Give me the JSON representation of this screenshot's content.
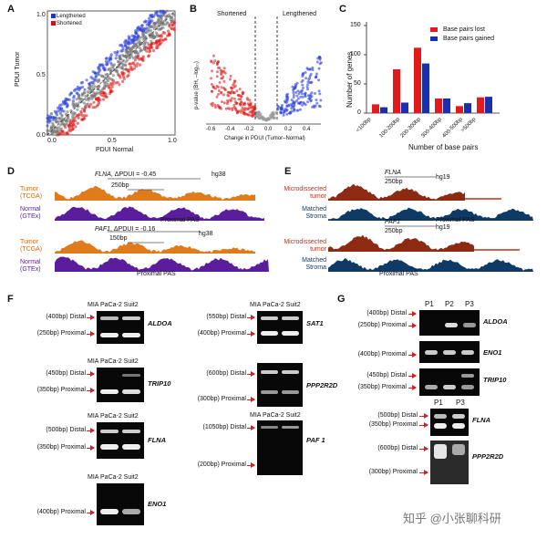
{
  "panelA": {
    "letter": "A",
    "xlabel": "PDUI Normal",
    "ylabel": "PDUI Tumor",
    "xticks": [
      "0.0",
      "0.5",
      "1.0"
    ],
    "yticks": [
      "0.0",
      "0.5",
      "1.0"
    ],
    "legend": [
      {
        "label": "Lengthened",
        "color": "#2233cc"
      },
      {
        "label": "Shortened",
        "color": "#cc1111"
      }
    ]
  },
  "panelB": {
    "letter": "B",
    "label_left": "Shortened",
    "label_right": "Lengthened",
    "xlabel": "Change in PDUI (Tumor–Normal)",
    "ylabel": "p-value (BH, –log₁₀)",
    "xticks": [
      "-0.6",
      "-0.4",
      "-0.2",
      "0.0",
      "0.2",
      "0.4"
    ]
  },
  "chart_data": {
    "type": "bar",
    "title": "",
    "xlabel": "Number of base pairs",
    "ylabel": "Number of genes",
    "ylim": [
      0,
      150
    ],
    "yticks": [
      "0",
      "50",
      "100",
      "150"
    ],
    "legend_position": "top-right",
    "categories": [
      "<100bp",
      "100-200bp",
      "200-300bp",
      "300-400bp",
      "400-500bp",
      ">500bp"
    ],
    "series": [
      {
        "name": "Base pairs lost",
        "color": "#e31a1c",
        "values": [
          15,
          75,
          112,
          25,
          12,
          27
        ]
      },
      {
        "name": "Base pairs gained",
        "color": "#1a2fb0",
        "values": [
          10,
          18,
          85,
          25,
          17,
          28
        ]
      }
    ]
  },
  "panelC": {
    "letter": "C"
  },
  "panelD": {
    "letter": "D",
    "track1": {
      "gene": "FLNA",
      "delta": ", ΔPDUI = -0.45",
      "build": "hg38",
      "scale": "250bp",
      "pas": "Proximal PAS"
    },
    "track2": {
      "gene": "PAF1",
      "delta": ", ΔPDUI = -0.16",
      "build": "hg38",
      "scale": "150bp",
      "pas": "Proximal PAS"
    },
    "tumor_label": "Tumor",
    "tumor_sub": "(TCGA)",
    "normal_label": "Normal",
    "normal_sub": "(GTEx)"
  },
  "panelE": {
    "letter": "E",
    "track1": {
      "gene": "FLNA",
      "build": "hg19",
      "scale": "250bp",
      "pas": "Proximal PAS"
    },
    "track2": {
      "gene": "PAF1",
      "build": "hg19",
      "scale": "250bp",
      "pas": "Proximal PAS"
    },
    "micro_label1": "Microdissected",
    "micro_label2": "tumor",
    "stroma_label1": "Matched",
    "stroma_label2": "Stroma"
  },
  "panelF": {
    "letter": "F",
    "header": "MIA PaCa-2  Suit2",
    "gels": [
      {
        "gene": "ALDOA",
        "distal": "(400bp) Distal",
        "proximal": "(250bp) Proximal"
      },
      {
        "gene": "TRIP10",
        "distal": "(450bp) Distal",
        "proximal": "(350bp) Proximal"
      },
      {
        "gene": "FLNA",
        "distal": "(500bp) Distal",
        "proximal": "(350bp) Proximal"
      },
      {
        "gene": "ENO1",
        "distal": "",
        "proximal": "(400bp) Proximal"
      },
      {
        "gene": "SAT1",
        "distal": "(550bp) Distal",
        "proximal": "(400bp) Proximal"
      },
      {
        "gene": "PPP2R2D",
        "distal": "(600bp) Distal",
        "proximal": "(300bp) Proximal"
      },
      {
        "gene": "PAF 1",
        "distal": "(1050bp) Distal",
        "proximal": "(200bp) Proximal"
      }
    ]
  },
  "panelG": {
    "letter": "G",
    "lanes": [
      "P1",
      "P2",
      "P3"
    ],
    "lanes2": [
      "P1",
      "P3"
    ],
    "gels": [
      {
        "gene": "ALDOA",
        "distal": "(400bp) Distal",
        "proximal": "(250bp) Proximal"
      },
      {
        "gene": "ENO1",
        "distal": "",
        "proximal": "(400bp) Proximal"
      },
      {
        "gene": "TRIP10",
        "distal": "(450bp) Distal",
        "proximal": "(350bp) Proximal"
      },
      {
        "gene": "FLNA",
        "distal": "(500bp) Distal",
        "proximal": "(350bp) Proximal"
      },
      {
        "gene": "PPP2R2D",
        "distal": "(600bp) Distal",
        "proximal": "(300bp) Proximal"
      }
    ]
  },
  "watermark": "知乎 @小张聊科研"
}
